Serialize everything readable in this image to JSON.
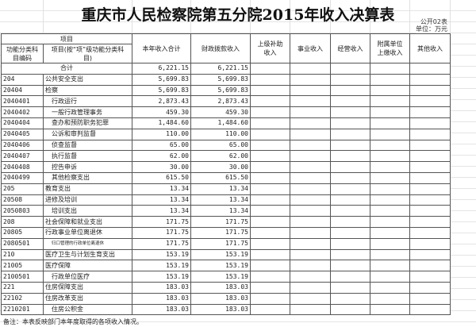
{
  "title": "重庆市人民检察院第五分院2015年收入决算表",
  "form_no": "公开02表",
  "unit": "单位：万元",
  "headers": {
    "item": "项目",
    "code": "功能分类科目编码",
    "name": "项目(按“项”级功能分类科目)",
    "total": "本年收入合计",
    "fiscal": "财政拨款收入",
    "superior": "上级补助收入",
    "business": "事业收入",
    "operating": "经营收入",
    "affiliated": "附属单位上缴收入",
    "other": "其他收入"
  },
  "total_row": {
    "label": "合计",
    "total": "6,221.15",
    "fiscal": "6,221.15"
  },
  "rows": [
    {
      "code": "204",
      "name": "公共安全支出",
      "total": "5,699.83",
      "fiscal": "5,699.83",
      "level": 0
    },
    {
      "code": "20404",
      "name": "检察",
      "total": "5,699.83",
      "fiscal": "5,699.83",
      "level": 0
    },
    {
      "code": "2040401",
      "name": "行政运行",
      "total": "2,873.43",
      "fiscal": "2,873.43",
      "level": 1
    },
    {
      "code": "2040402",
      "name": "一般行政管理事务",
      "total": "459.30",
      "fiscal": "459.30",
      "level": 1
    },
    {
      "code": "2040404",
      "name": "查办和预防职务犯罪",
      "total": "1,484.60",
      "fiscal": "1,484.60",
      "level": 1
    },
    {
      "code": "2040405",
      "name": "公诉和审判监督",
      "total": "110.00",
      "fiscal": "110.00",
      "level": 1
    },
    {
      "code": "2040406",
      "name": "侦查监督",
      "total": "65.00",
      "fiscal": "65.00",
      "level": 1
    },
    {
      "code": "2040407",
      "name": "执行监督",
      "total": "62.00",
      "fiscal": "62.00",
      "level": 1
    },
    {
      "code": "2040408",
      "name": "控告申诉",
      "total": "30.00",
      "fiscal": "30.00",
      "level": 1
    },
    {
      "code": "2040499",
      "name": "其他检察支出",
      "total": "615.50",
      "fiscal": "615.50",
      "level": 1
    },
    {
      "code": "205",
      "name": "教育支出",
      "total": "13.34",
      "fiscal": "13.34",
      "level": 0
    },
    {
      "code": "20508",
      "name": "进修及培训",
      "total": "13.34",
      "fiscal": "13.34",
      "level": 0
    },
    {
      "code": "2050803",
      "name": "培训支出",
      "total": "13.34",
      "fiscal": "13.34",
      "level": 1
    },
    {
      "code": "208",
      "name": "社会保障和就业支出",
      "total": "171.75",
      "fiscal": "171.75",
      "level": 0
    },
    {
      "code": "20805",
      "name": "行政事业单位离退休",
      "total": "171.75",
      "fiscal": "171.75",
      "level": 0
    },
    {
      "code": "2080501",
      "name": "归口管理的行政单位离退休",
      "total": "171.75",
      "fiscal": "171.75",
      "level": 2
    },
    {
      "code": "210",
      "name": "医疗卫生与计划生育支出",
      "total": "153.19",
      "fiscal": "153.19",
      "level": 0
    },
    {
      "code": "21005",
      "name": "医疗保障",
      "total": "153.19",
      "fiscal": "153.19",
      "level": 0
    },
    {
      "code": "2100501",
      "name": "行政单位医疗",
      "total": "153.19",
      "fiscal": "153.19",
      "level": 1
    },
    {
      "code": "221",
      "name": "住房保障支出",
      "total": "183.03",
      "fiscal": "183.03",
      "level": 0
    },
    {
      "code": "22102",
      "name": "住房改革支出",
      "total": "183.03",
      "fiscal": "183.03",
      "level": 0
    },
    {
      "code": "2210201",
      "name": "住房公积金",
      "total": "183.03",
      "fiscal": "183.03",
      "level": 1
    }
  ],
  "note": "备注：本表反映部门本年度取得的各项收入情况。"
}
